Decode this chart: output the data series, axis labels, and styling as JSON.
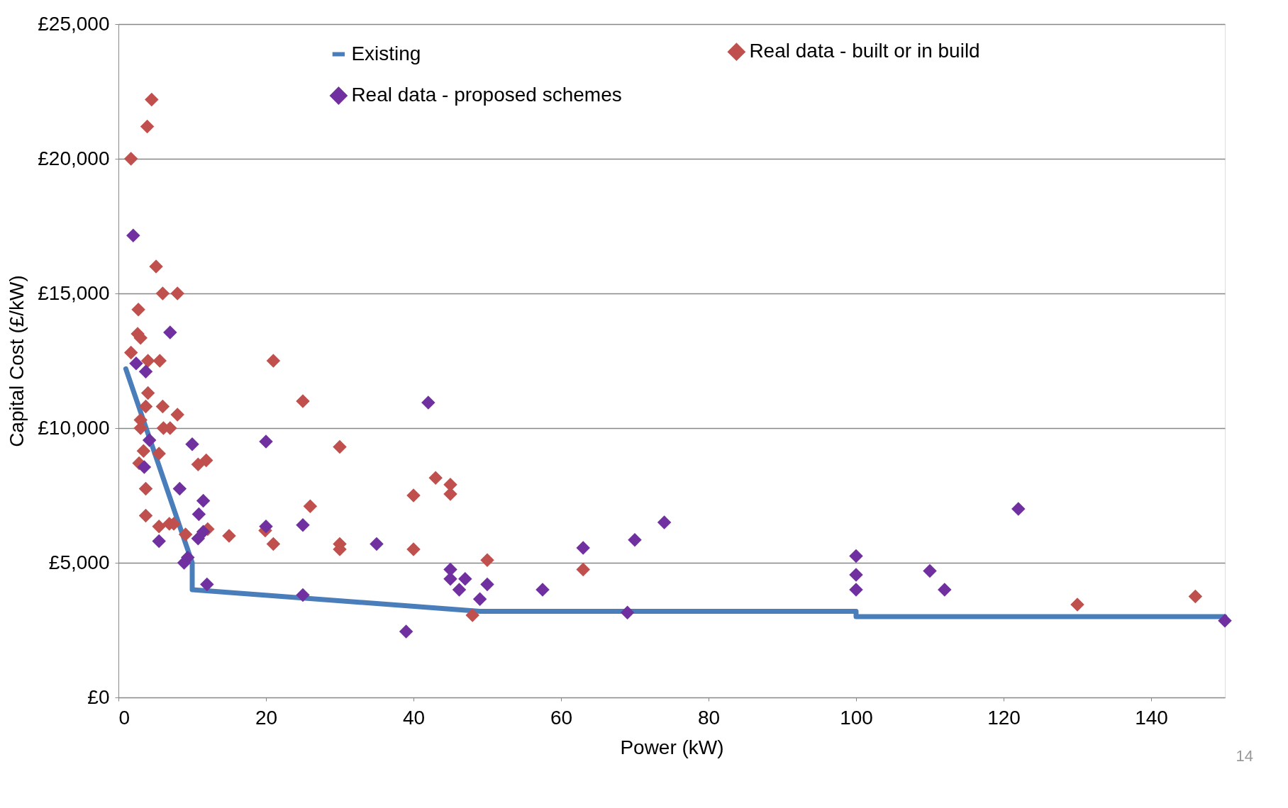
{
  "chart_data": {
    "type": "scatter",
    "xlabel": "Power (kW)",
    "ylabel": "Capital Cost (£/kW)",
    "xlim": [
      0,
      150
    ],
    "xticks": [
      0,
      20,
      40,
      60,
      80,
      100,
      120,
      140
    ],
    "ylim": [
      0,
      25000
    ],
    "yticks": [
      {
        "value": 0,
        "label": "£0"
      },
      {
        "value": 5000,
        "label": "£5,000"
      },
      {
        "value": 10000,
        "label": "£10,000"
      },
      {
        "value": 15000,
        "label": "£15,000"
      },
      {
        "value": 20000,
        "label": "£20,000"
      },
      {
        "value": 25000,
        "label": "£25,000"
      }
    ],
    "grid": "y",
    "legend": "top",
    "annotations": [
      "14"
    ],
    "series": [
      {
        "name": "Existing",
        "type": "line",
        "marker": "none",
        "color": "#4a7ebb",
        "x": [
          1,
          10,
          10,
          49,
          100,
          100,
          150
        ],
        "values": [
          12200,
          5000,
          4000,
          3200,
          3200,
          3000,
          3000
        ]
      },
      {
        "name": "Real data - built or in build",
        "marker": "diamond",
        "color": "#c0504d",
        "x": [
          4.5,
          3.9,
          1.7,
          5.1,
          6.0,
          8.0,
          2.7,
          2.6,
          3.0,
          1.7,
          4.0,
          5.6,
          21,
          4.0,
          3.7,
          6.0,
          3.0,
          8.0,
          25,
          3.0,
          6.1,
          7.0,
          3.4,
          5.5,
          30,
          2.8,
          10.8,
          11.9,
          3.7,
          40,
          43,
          45,
          45,
          26,
          3.7,
          5.5,
          6.9,
          7.5,
          9.1,
          12.1,
          15,
          19.9,
          21,
          30,
          30,
          40,
          50,
          63,
          48,
          130,
          146
        ],
        "values": [
          22200,
          21200,
          20000,
          16000,
          15000,
          15000,
          14400,
          13500,
          13350,
          12800,
          12500,
          12500,
          12500,
          11300,
          10800,
          10800,
          10300,
          10500,
          11000,
          10000,
          10000,
          10000,
          9150,
          9050,
          9300,
          8700,
          8650,
          8800,
          7750,
          7500,
          8150,
          7900,
          7550,
          7100,
          6750,
          6350,
          6450,
          6450,
          6050,
          6250,
          6000,
          6200,
          5700,
          5700,
          5500,
          5500,
          5100,
          4750,
          3050,
          3450,
          3750
        ]
      },
      {
        "name": "Real data - proposed schemes",
        "marker": "diamond",
        "color": "#7030a0",
        "x": [
          2.0,
          7.0,
          2.4,
          3.7,
          4.2,
          10,
          20,
          42,
          3.5,
          8.3,
          11.5,
          10.9,
          122,
          74,
          20,
          25,
          35,
          70,
          63,
          11.5,
          10.8,
          5.5,
          9.4,
          8.9,
          100,
          45,
          45,
          47,
          46.2,
          50,
          57.5,
          49,
          100,
          100,
          110,
          112,
          12,
          25,
          69,
          39,
          150
        ],
        "values": [
          17150,
          13550,
          12400,
          12100,
          9550,
          9400,
          9500,
          10950,
          8550,
          7750,
          7300,
          6800,
          7000,
          6500,
          6350,
          6400,
          5700,
          5850,
          5550,
          6150,
          5900,
          5800,
          5200,
          5000,
          5250,
          4750,
          4400,
          4400,
          4000,
          4200,
          4000,
          3650,
          4550,
          4000,
          4700,
          4000,
          4200,
          3800,
          3150,
          2450,
          2850
        ]
      }
    ]
  }
}
